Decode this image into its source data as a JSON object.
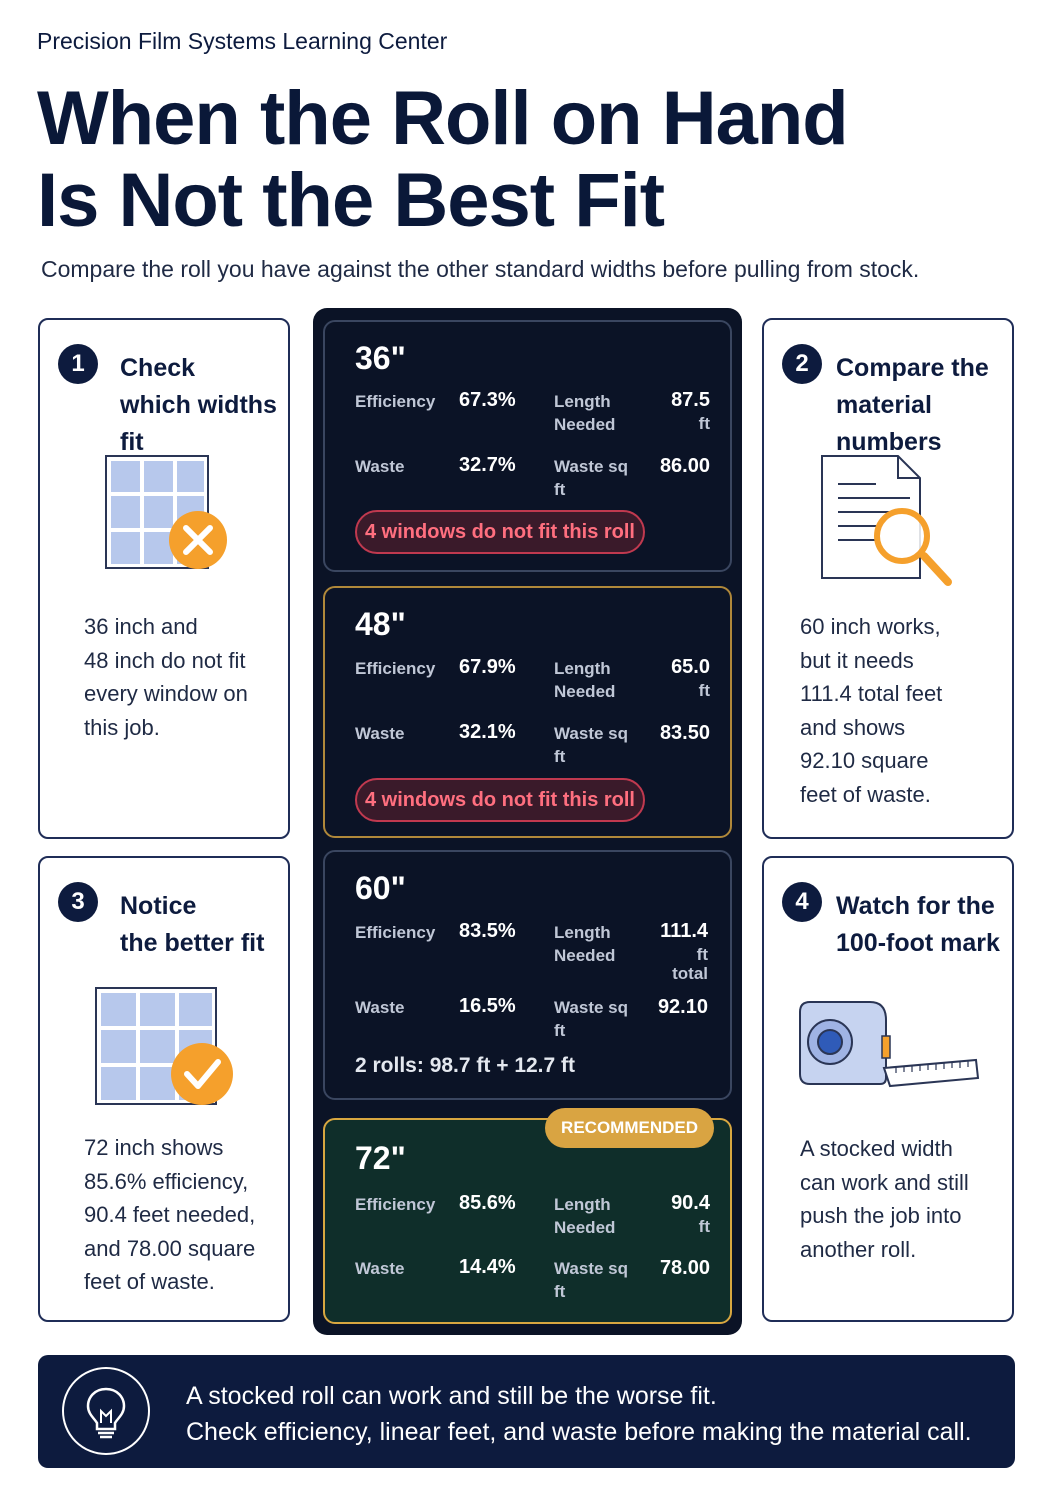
{
  "header": {
    "org": "Precision Film Systems Learning Center",
    "title_line1": "When the Roll on Hand",
    "title_line2": "Is Not the Best Fit",
    "subtitle": "Compare the roll you have against the other standard widths before pulling from stock."
  },
  "steps": [
    {
      "num": "1",
      "title_line1": "Check",
      "title_line2": "which widths fit",
      "icon": "window-grid-x-icon",
      "text": [
        "36 inch and",
        "48 inch do not fit",
        "every window on",
        "this job."
      ]
    },
    {
      "num": "2",
      "title_line1": "Compare the",
      "title_line2": "material numbers",
      "icon": "document-magnifier-icon",
      "text": [
        "60 inch works,",
        "but it needs",
        "111.4 total feet",
        "and shows",
        "92.10 square",
        "feet of waste."
      ]
    },
    {
      "num": "3",
      "title_line1": "Notice",
      "title_line2": "the better fit",
      "icon": "window-grid-check-icon",
      "text": [
        "72 inch shows",
        "85.6% efficiency,",
        "90.4 feet needed,",
        "and 78.00 square",
        "feet of waste."
      ]
    },
    {
      "num": "4",
      "title_line1": "Watch for the",
      "title_line2": "100-foot mark",
      "icon": "tape-measure-icon",
      "text": [
        "A stocked width",
        "can work and still",
        "push the job into",
        "another roll."
      ]
    }
  ],
  "labels": {
    "efficiency": "Efficiency",
    "length_1": "Length",
    "length_2": "Needed",
    "waste": "Waste",
    "waste_sq_1": "Waste sq",
    "waste_sq_2": "ft"
  },
  "rolls": [
    {
      "width": "36\"",
      "efficiency": "67.3%",
      "length": "87.5",
      "length_unit": "ft",
      "length_unit2": "",
      "waste": "32.7%",
      "waste_sq": "86.00",
      "note": "4 windows do not fit this roll"
    },
    {
      "width": "48\"",
      "efficiency": "67.9%",
      "length": "65.0",
      "length_unit": "ft",
      "length_unit2": "",
      "waste": "32.1%",
      "waste_sq": "83.50",
      "note": "4 windows do not fit this roll"
    },
    {
      "width": "60\"",
      "efficiency": "83.5%",
      "length": "111.4",
      "length_unit": "ft",
      "length_unit2": "total",
      "waste": "16.5%",
      "waste_sq": "92.10",
      "note": "2 rolls: 98.7 ft + 12.7 ft"
    },
    {
      "width": "72\"",
      "efficiency": "85.6%",
      "length": "90.4",
      "length_unit": "ft",
      "length_unit2": "",
      "waste": "14.4%",
      "waste_sq": "78.00",
      "badge": "RECOMMENDED"
    }
  ],
  "banner": {
    "icon": "lightbulb-icon",
    "line1": "A stocked roll can work and still be the worse fit.",
    "line2": "Check efficiency, linear feet, and waste before making the material call."
  },
  "colors": {
    "navy": "#0d1b3e",
    "orange": "#f5a02c",
    "warning_red": "#ff6f7f",
    "recommended_gold": "#d9a442",
    "recommended_bg": "#0f2e2a"
  }
}
